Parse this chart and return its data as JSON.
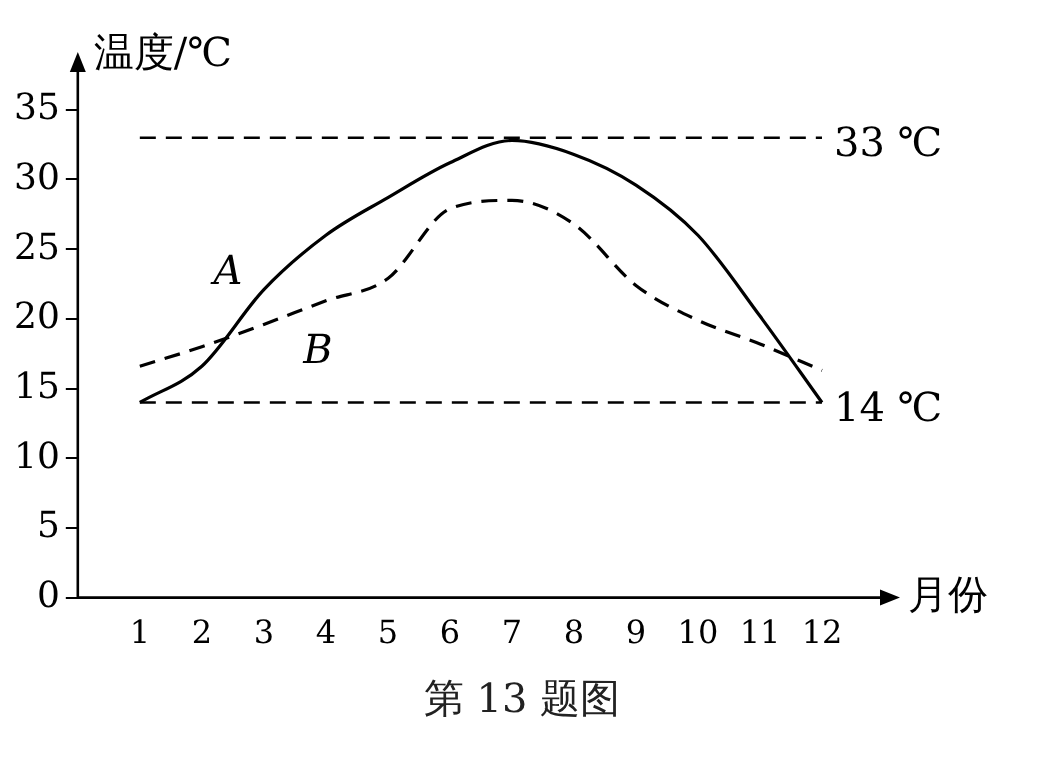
{
  "chart_data": {
    "type": "line",
    "xlabel": "月份",
    "ylabel": "温度/℃",
    "x": [
      1,
      2,
      3,
      4,
      5,
      6,
      7,
      8,
      9,
      10,
      11,
      12
    ],
    "series": [
      {
        "name": "A",
        "color": "#000000",
        "line_style": "solid",
        "values": [
          14,
          16.6,
          22.1,
          26,
          28.7,
          31.2,
          32.8,
          31.8,
          29.6,
          26,
          20.2,
          14
        ]
      },
      {
        "name": "B",
        "color": "#000000",
        "line_style": "dashed",
        "values": [
          16.6,
          18,
          19.6,
          21.3,
          22.9,
          27.9,
          28.5,
          26.8,
          22.4,
          19.9,
          18.2,
          16.3
        ]
      }
    ],
    "xlim": [
      0,
      13
    ],
    "xticks": [
      1,
      2,
      3,
      4,
      5,
      6,
      7,
      8,
      9,
      10,
      11,
      12
    ],
    "ylim": [
      0,
      38
    ],
    "yticks": [
      0,
      5,
      10,
      15,
      20,
      25,
      30,
      35
    ],
    "ref_lines": [
      {
        "axis": "y",
        "value": 33,
        "label": "33 ℃",
        "color": "#000000",
        "line_style": "dashed"
      },
      {
        "axis": "y",
        "value": 14,
        "label": "14 ℃",
        "color": "#000000",
        "line_style": "dashed"
      }
    ],
    "annotations": [
      "第 13 题图"
    ],
    "grid": false,
    "legend": false,
    "marker": "none"
  }
}
